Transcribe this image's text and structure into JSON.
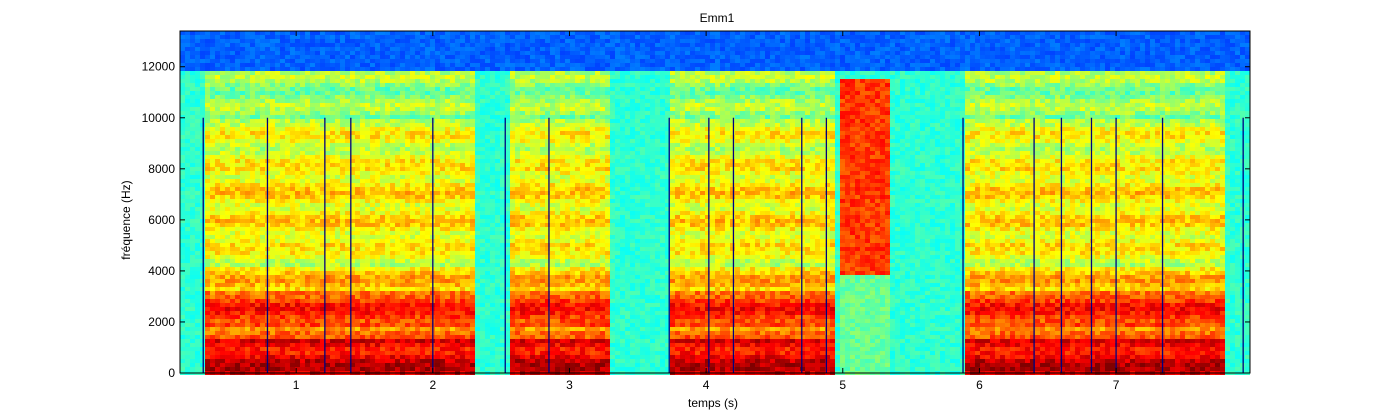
{
  "chart_data": {
    "type": "heatmap",
    "subtype": "spectrogram",
    "title": "Emm1",
    "xlabel": "temps (s)",
    "ylabel": "fréquence (Hz)",
    "xlim": [
      0.15,
      7.98
    ],
    "ylim": [
      0,
      13400
    ],
    "x_ticks": [
      1,
      2,
      3,
      4,
      5,
      6,
      7
    ],
    "y_ticks": [
      0,
      2000,
      4000,
      6000,
      8000,
      10000,
      12000
    ],
    "grid": false,
    "colormap": "jet",
    "segment_boundaries_s": [
      0.32,
      0.79,
      1.21,
      1.4,
      2.0,
      2.53,
      2.85,
      3.73,
      4.02,
      4.2,
      4.7,
      4.88,
      5.88,
      6.4,
      6.6,
      6.82,
      7.0,
      7.34,
      7.93
    ],
    "segment_marker_max_hz": 10000,
    "voiced_regions_s": [
      [
        0.32,
        1.4
      ],
      [
        1.4,
        2.3
      ],
      [
        2.55,
        3.3
      ],
      [
        3.75,
        4.95
      ],
      [
        5.88,
        6.4
      ],
      [
        6.4,
        7.8
      ]
    ],
    "fricative_regions_s": [
      [
        4.97,
        5.35
      ]
    ]
  },
  "colors": {
    "background_low": "#3ed6c0",
    "mid": "#c8f060",
    "high": "#ffd400",
    "peak": "#e02000",
    "ceiling": "#1e6fd0",
    "marker": "#000080"
  }
}
